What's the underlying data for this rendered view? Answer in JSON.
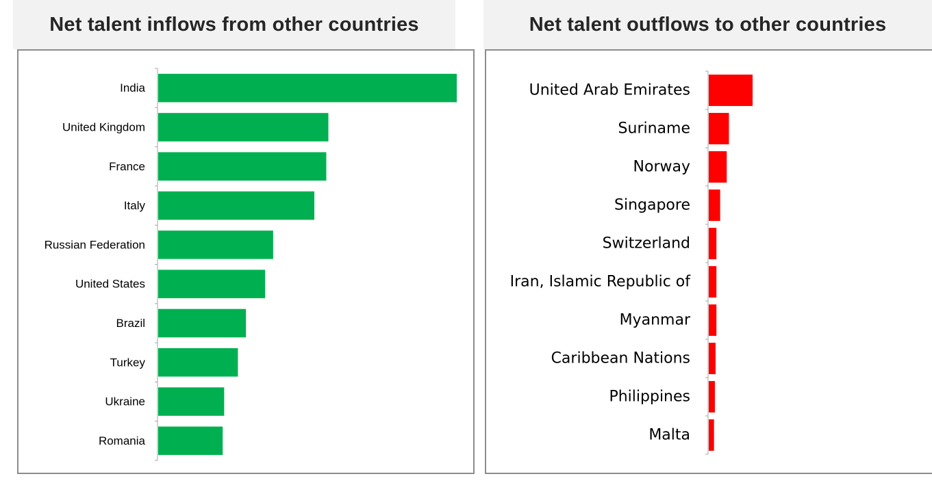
{
  "chart_data": [
    {
      "type": "bar",
      "orientation": "horizontal",
      "title": "Net talent inflows from other countries",
      "categories": [
        "India",
        "United Kingdom",
        "France",
        "Italy",
        "Russian Federation",
        "United States",
        "Brazil",
        "Turkey",
        "Ukraine",
        "Romania"
      ],
      "values": [
        100,
        57,
        56.3,
        52.3,
        38.5,
        35.8,
        29.4,
        26.7,
        22.1,
        21.6
      ],
      "xlabel": "",
      "ylabel": "",
      "xlim": [
        0,
        100
      ],
      "grid": false,
      "color": "#00b050"
    },
    {
      "type": "bar",
      "orientation": "horizontal",
      "title": "Net talent outflows to other countries",
      "categories": [
        "United Arab Emirates",
        "Suriname",
        "Norway",
        "Singapore",
        "Switzerland",
        "Iran, Islamic Republic of",
        "Myanmar",
        "Caribbean Nations",
        "Philippines",
        "Malta"
      ],
      "values": [
        100,
        46,
        41,
        26,
        17.5,
        17.5,
        17.5,
        15.5,
        14,
        12
      ],
      "xlabel": "",
      "ylabel": "",
      "xlim": [
        0,
        100
      ],
      "grid": false,
      "color": "#ff0000"
    }
  ]
}
